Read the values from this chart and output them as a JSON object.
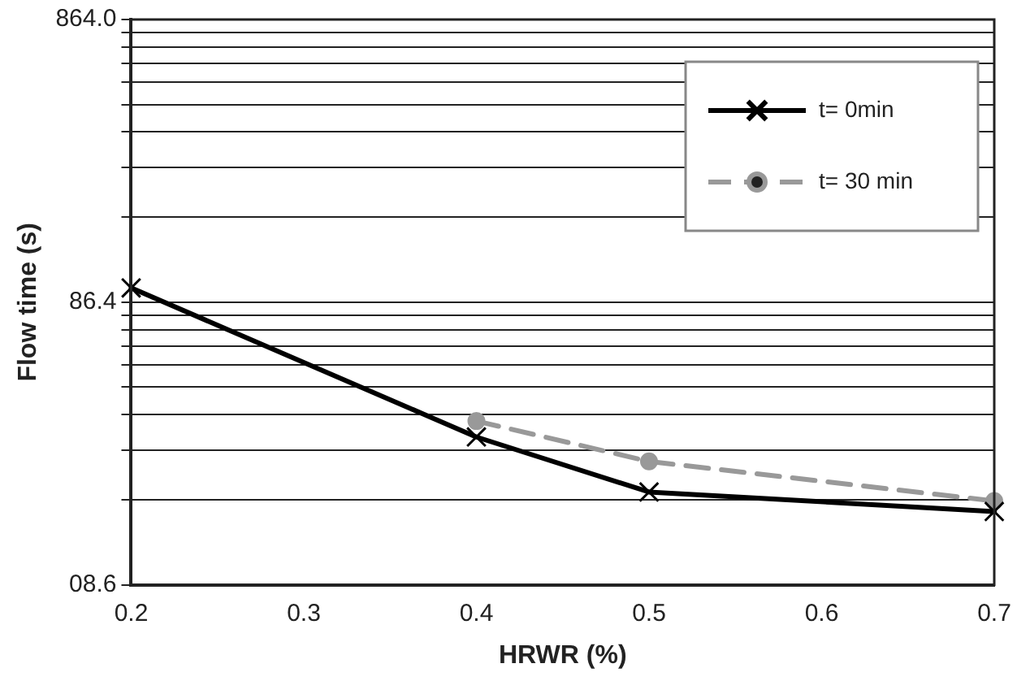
{
  "chart_data": {
    "type": "line",
    "xlabel": "HRWR (%)",
    "ylabel": "Flow time (s)",
    "x": [
      0.2,
      0.4,
      0.5,
      0.7
    ],
    "series": [
      {
        "name": "t= 0min",
        "color": "#000000",
        "values": [
          97,
          28.8,
          18.4,
          15.7
        ],
        "marker": "cross",
        "line_style": "solid"
      },
      {
        "name": "t= 30 min",
        "color": "#999999",
        "x": [
          0.4,
          0.5,
          0.7
        ],
        "values": [
          32.8,
          23.6,
          17.1
        ],
        "marker": "circle",
        "line_style": "dashed"
      }
    ],
    "xlim": [
      0.2,
      0.7
    ],
    "xticks": [
      0.2,
      0.3,
      0.4,
      0.5,
      0.6,
      0.7
    ],
    "log": "y",
    "ylim": [
      8.64,
      864
    ],
    "yticks": [
      {
        "value": 8.64,
        "label": "08.6"
      },
      {
        "value": 17.28,
        "label": null
      },
      {
        "value": 25.92,
        "label": null
      },
      {
        "value": 34.56,
        "label": null
      },
      {
        "value": 43.2,
        "label": null
      },
      {
        "value": 51.84,
        "label": null
      },
      {
        "value": 60.48,
        "label": null
      },
      {
        "value": 69.12,
        "label": null
      },
      {
        "value": 77.76,
        "label": null
      },
      {
        "value": 86.4,
        "label": "86.4"
      },
      {
        "value": 172.8,
        "label": null
      },
      {
        "value": 259.2,
        "label": null
      },
      {
        "value": 345.6,
        "label": null
      },
      {
        "value": 432,
        "label": null
      },
      {
        "value": 518.4,
        "label": null
      },
      {
        "value": 604.8,
        "label": null
      },
      {
        "value": 691.2,
        "label": null
      },
      {
        "value": 777.6,
        "label": null
      },
      {
        "value": 864,
        "label": "864.0"
      }
    ],
    "grid": "y",
    "legend": "top right"
  }
}
